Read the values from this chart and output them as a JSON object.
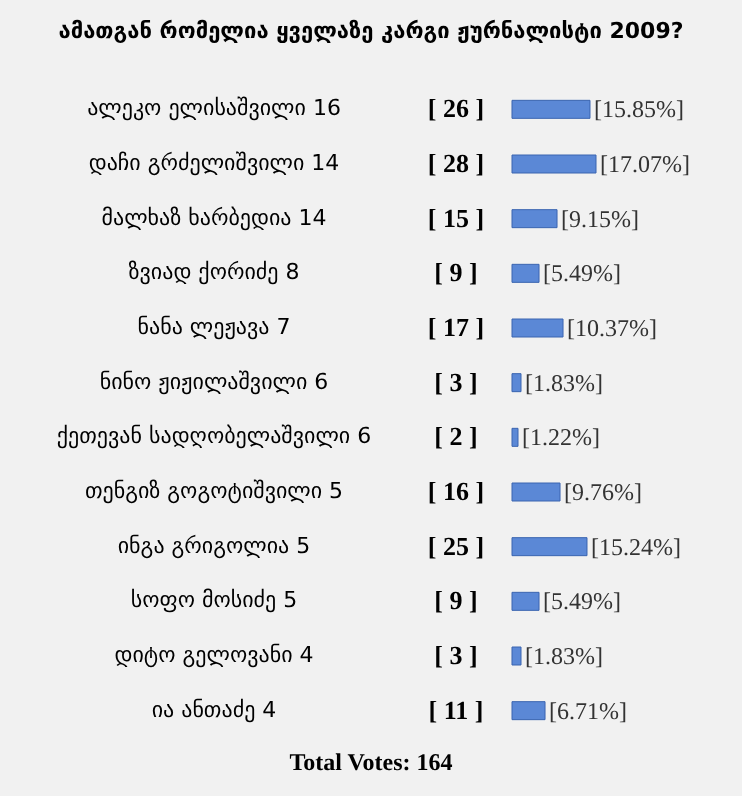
{
  "chart_data": {
    "type": "bar",
    "orientation": "horizontal",
    "title": "ამათგან რომელია ყველაზე კარგი ჟურნალისტი 2009?",
    "categories": [
      "ალეკო ელისაშვილი 16",
      "დაჩი გრძელიშვილი 14",
      "მალხაზ ხარბედია 14",
      "ზვიად ქორიძე 8",
      "ნანა ლეჟავა 7",
      "ნინო ჟიჟილაშვილი 6",
      "ქეთევან სადღობელაშვილი 6",
      "თენგიზ გოგოტიშვილი 5",
      "ინგა გრიგოლია 5",
      "სოფო მოსიძე 5",
      "დიტო გელოვანი 4",
      "ია ანთაძე 4"
    ],
    "values": [
      15.85,
      17.07,
      9.15,
      5.49,
      10.37,
      1.83,
      1.22,
      9.76,
      15.24,
      5.49,
      1.83,
      6.71
    ],
    "value_labels": [
      "[15.85%]",
      "[17.07%]",
      "[9.15%]",
      "[5.49%]",
      "[10.37%]",
      "[1.83%]",
      "[1.22%]",
      "[9.76%]",
      "[15.24%]",
      "[5.49%]",
      "[1.83%]",
      "[6.71%]"
    ],
    "color": "#5b88d6",
    "annotations": [
      "[ 26 ]",
      "[ 28 ]",
      "[ 15 ]",
      "[ 9 ]",
      "[ 17 ]",
      "[ 3 ]",
      "[ 2 ]",
      "[ 16 ]",
      "[ 25 ]",
      "[ 9 ]",
      "[ 3 ]",
      "[ 11 ]",
      "Total Votes: 164"
    ]
  }
}
